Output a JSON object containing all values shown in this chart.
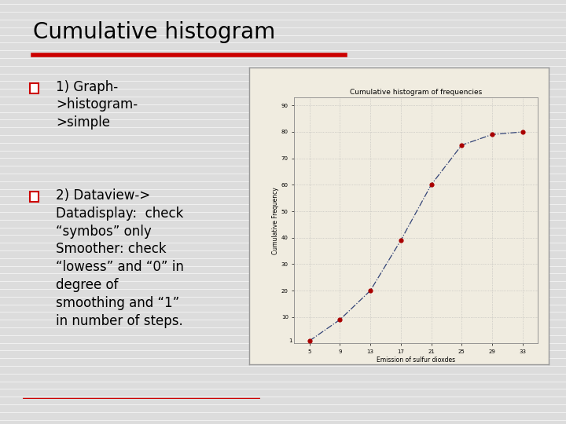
{
  "title": "Cumulative histogram",
  "slide_bg": "#dcdcdc",
  "title_color": "#000000",
  "underline_color": "#cc0000",
  "bullet_color": "#cc0000",
  "bullet1_lines": [
    "1) Graph-",
    ">histogram-",
    ">simple"
  ],
  "bullet2_lines": [
    "2) Dataview->",
    "Datadisplay:  check",
    "“symbos” only",
    "Smoother: check",
    "“lowess” and “0” in",
    "degree of",
    "smoothing and “1”",
    "in number of steps."
  ],
  "chart_bg": "#f0ece0",
  "chart_border_color": "#999999",
  "chart_title": "Cumulative histogram of frequencies",
  "chart_xlabel": "Emission of sulfur dioxdes",
  "chart_ylabel": "Cumulative Frequency",
  "x_data": [
    5,
    9,
    13,
    17,
    21,
    25,
    29,
    33
  ],
  "y_data": [
    1,
    9,
    20,
    39,
    60,
    75,
    79,
    80
  ],
  "x_ticks": [
    5,
    9,
    13,
    17,
    21,
    25,
    29,
    33
  ],
  "y_ticks": [
    10,
    20,
    30,
    40,
    50,
    60,
    70,
    80,
    90
  ],
  "y_tick_labels": [
    "10",
    "20",
    "30",
    "40",
    "50",
    "60",
    "70",
    "80",
    "90"
  ],
  "x_tick_labels": [
    "5",
    "9",
    "13",
    "17",
    "21",
    "25",
    "29",
    "33"
  ],
  "point_color": "#aa0000",
  "line_color": "#334477",
  "line_style": "-.",
  "ylim": [
    0,
    93
  ],
  "xlim": [
    3,
    35
  ],
  "title_fontsize": 20,
  "bullet_fontsize": 12,
  "chart_title_fontsize": 6.5,
  "chart_label_fontsize": 5.5,
  "chart_tick_fontsize": 5
}
